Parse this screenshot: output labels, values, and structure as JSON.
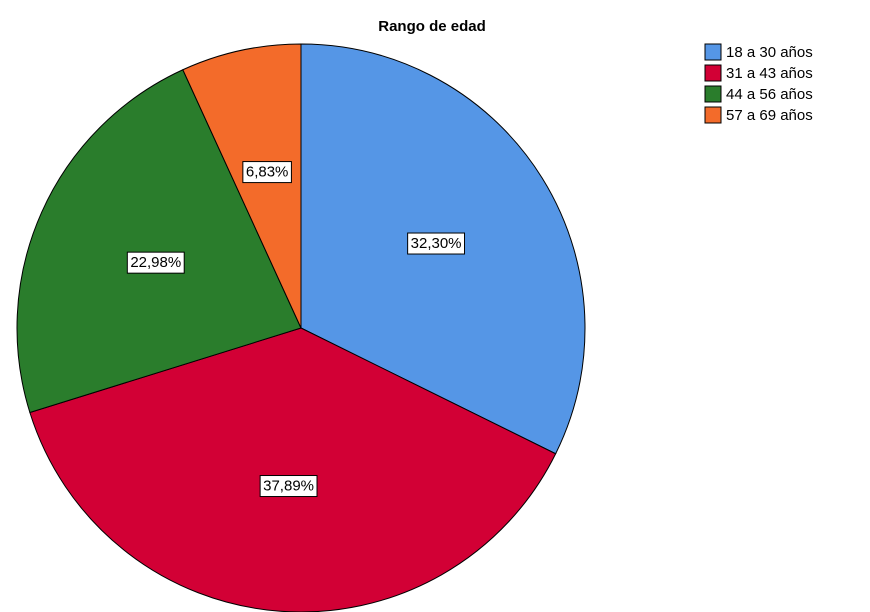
{
  "chart_data": {
    "type": "pie",
    "title": "Rango de edad",
    "categories": [
      "18 a 30 años",
      "31 a 43 años",
      "44 a 56 años",
      "57 a 69 años"
    ],
    "values": [
      32.3,
      37.89,
      22.98,
      6.83
    ],
    "value_labels": [
      "32,30%",
      "37,89%",
      "22,98%",
      "6,83%"
    ],
    "colors": [
      "#5596e6",
      "#d20035",
      "#2a7d2c",
      "#f36b2a"
    ],
    "legend": "top-right"
  }
}
